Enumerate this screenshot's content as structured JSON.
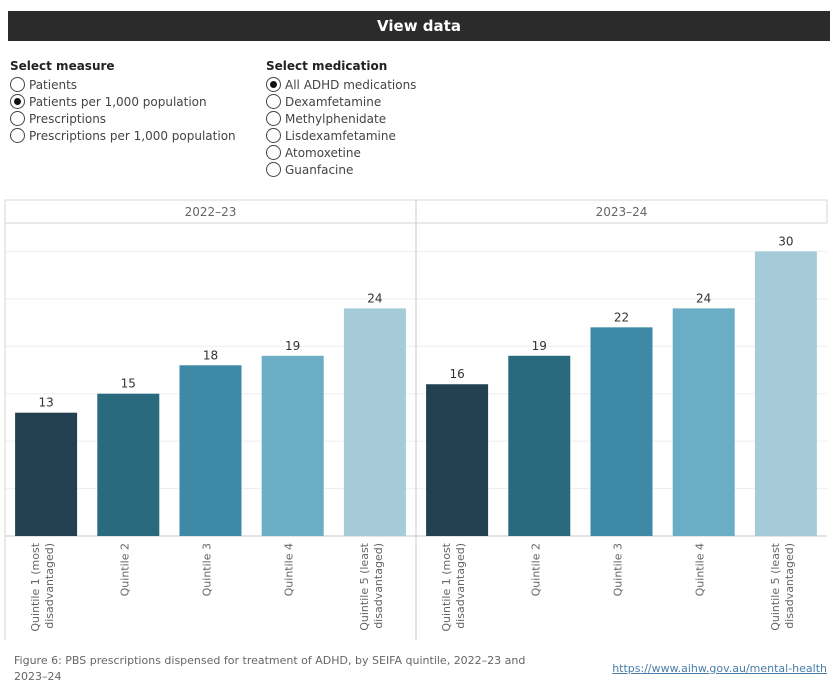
{
  "header": {
    "title": "View data"
  },
  "measure_filter": {
    "title": "Select measure",
    "options": [
      "Patients",
      "Patients per 1,000 population",
      "Prescriptions",
      "Prescriptions per 1,000 population"
    ],
    "selected": 1
  },
  "medication_filter": {
    "title": "Select medication",
    "options": [
      "All ADHD medications",
      "Dexamfetamine",
      "Methylphenidate",
      "Lisdexamfetamine",
      "Atomoxetine",
      "Guanfacine"
    ],
    "selected": 0
  },
  "chart_data": {
    "type": "bar",
    "panels": [
      {
        "title": "2022–23",
        "values": [
          13,
          15,
          18,
          19,
          24
        ]
      },
      {
        "title": "2023–24",
        "values": [
          16,
          19,
          22,
          24,
          30
        ]
      }
    ],
    "categories": [
      [
        "Quintile 1 (most",
        "disadvantaged)"
      ],
      [
        "Quintile 2"
      ],
      [
        "Quintile 3"
      ],
      [
        "Quintile 4"
      ],
      [
        "Quintile 5 (least",
        "disadvantaged)"
      ]
    ],
    "colors": [
      "#22404f",
      "#2a6a7e",
      "#3e8aa6",
      "#6aadc4",
      "#a5cad8"
    ],
    "ylim": [
      0,
      33
    ],
    "grid": true
  },
  "footer": {
    "caption": "Figure 6: PBS prescriptions dispensed for treatment of ADHD, by SEIFA quintile, 2022–23 and 2023–24",
    "link": "https://www.aihw.gov.au/mental-health"
  }
}
